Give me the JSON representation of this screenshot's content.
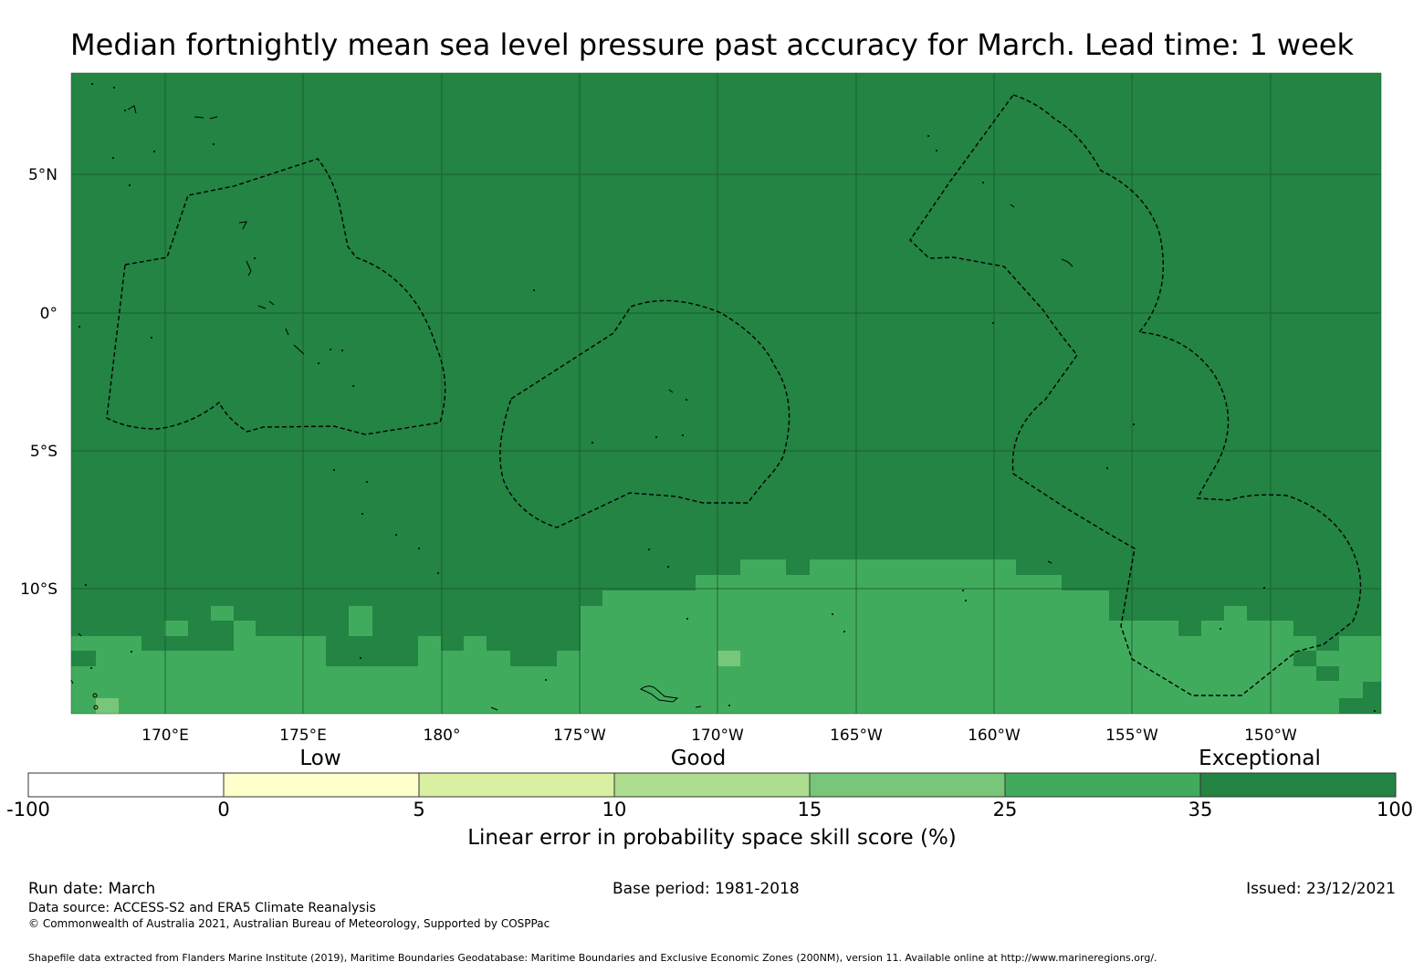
{
  "title": "Median fortnightly mean sea level pressure past accuracy for March. Lead time: 1 week",
  "map": {
    "lon_labels": [
      "170°E",
      "175°E",
      "180°",
      "175°W",
      "170°W",
      "165°W",
      "160°W",
      "155°W",
      "150°W"
    ],
    "lat_labels": [
      "5°N",
      "0°",
      "5°S",
      "10°S"
    ],
    "colors": {
      "exceptional": "#238443",
      "band_25_35": "#41ab5d",
      "band_15_25": "#78c679",
      "gridline": "#1a5c2c",
      "boundary": "#000000"
    }
  },
  "legend": {
    "categories": [
      "Low",
      "Good",
      "Exceptional"
    ],
    "ticks": [
      "-100",
      "0",
      "5",
      "10",
      "15",
      "25",
      "35",
      "100"
    ],
    "colors": [
      "#ffffff",
      "#ffffcc",
      "#d9f0a3",
      "#addd8e",
      "#78c679",
      "#41ab5d",
      "#238443"
    ],
    "label": "Linear error in probability space skill score (%)"
  },
  "footer": {
    "run_date": "Run date: March",
    "base_period": "Base period: 1981-2018",
    "issued": "Issued: 23/12/2021",
    "data_source": "Data source: ACCESS-S2 and ERA5 Climate Reanalysis",
    "copyright": "© Commonwealth of Australia 2021, Australian Bureau of Meteorology, Supported by COSPPac",
    "shapefile": "Shapefile data extracted from Flanders Marine Institute (2019), Maritime Boundaries Geodatabase: Maritime Boundaries and Exclusive Economic Zones (200NM), version 11. Available online at http://www.marineregions.org/."
  }
}
